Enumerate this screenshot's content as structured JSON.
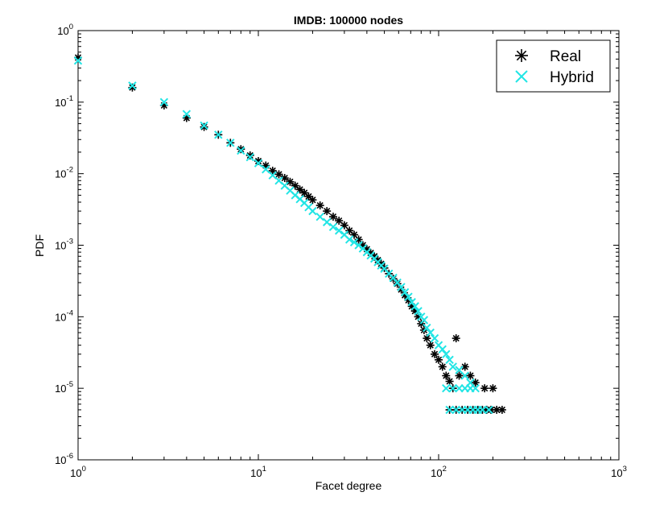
{
  "chart_data": {
    "type": "scatter",
    "title": "IMDB: 100000 nodes",
    "xlabel": "Facet degree",
    "ylabel": "PDF",
    "xscale": "log",
    "yscale": "log",
    "xlim": [
      1,
      1000
    ],
    "ylim": [
      1e-06,
      1
    ],
    "grid": false,
    "legend_position": "top-right",
    "x_ticks": [
      {
        "base": "10",
        "exp": "0",
        "value": 1
      },
      {
        "base": "10",
        "exp": "1",
        "value": 10
      },
      {
        "base": "10",
        "exp": "2",
        "value": 100
      },
      {
        "base": "10",
        "exp": "3",
        "value": 1000
      }
    ],
    "y_ticks": [
      {
        "base": "10",
        "exp": "0",
        "value": 1
      },
      {
        "base": "10",
        "exp": "-1",
        "value": 0.1
      },
      {
        "base": "10",
        "exp": "-2",
        "value": 0.01
      },
      {
        "base": "10",
        "exp": "-3",
        "value": 0.001
      },
      {
        "base": "10",
        "exp": "-4",
        "value": 0.0001
      },
      {
        "base": "10",
        "exp": "-5",
        "value": 1e-05
      },
      {
        "base": "10",
        "exp": "-6",
        "value": 1e-06
      }
    ],
    "series": [
      {
        "name": "Real",
        "marker": "asterisk",
        "color": "#000000",
        "points": [
          [
            1,
            0.42
          ],
          [
            2,
            0.16
          ],
          [
            3,
            0.09
          ],
          [
            4,
            0.06
          ],
          [
            5,
            0.045
          ],
          [
            6,
            0.035
          ],
          [
            7,
            0.027
          ],
          [
            8,
            0.022
          ],
          [
            9,
            0.018
          ],
          [
            10,
            0.015
          ],
          [
            11,
            0.013
          ],
          [
            12,
            0.011
          ],
          [
            13,
            0.0098
          ],
          [
            14,
            0.0087
          ],
          [
            15,
            0.0077
          ],
          [
            16,
            0.0068
          ],
          [
            17,
            0.006
          ],
          [
            18,
            0.0054
          ],
          [
            19,
            0.0048
          ],
          [
            20,
            0.0043
          ],
          [
            22,
            0.0036
          ],
          [
            24,
            0.003
          ],
          [
            26,
            0.0025
          ],
          [
            28,
            0.0022
          ],
          [
            30,
            0.0019
          ],
          [
            32,
            0.0016
          ],
          [
            34,
            0.0014
          ],
          [
            36,
            0.0012
          ],
          [
            38,
            0.001
          ],
          [
            40,
            0.00088
          ],
          [
            42,
            0.00078
          ],
          [
            44,
            0.0007
          ],
          [
            46,
            0.00062
          ],
          [
            48,
            0.00055
          ],
          [
            50,
            0.00048
          ],
          [
            53,
            0.0004
          ],
          [
            56,
            0.00034
          ],
          [
            59,
            0.00029
          ],
          [
            62,
            0.00024
          ],
          [
            65,
            0.0002
          ],
          [
            68,
            0.00017
          ],
          [
            71,
            0.00014
          ],
          [
            74,
            0.00012
          ],
          [
            77,
            0.0001
          ],
          [
            80,
            8e-05
          ],
          [
            83,
            6.5e-05
          ],
          [
            86,
            5e-05
          ],
          [
            90,
            4e-05
          ],
          [
            95,
            3e-05
          ],
          [
            100,
            2.5e-05
          ],
          [
            105,
            2e-05
          ],
          [
            110,
            1.5e-05
          ],
          [
            115,
            1.25e-05
          ],
          [
            120,
            1e-05
          ],
          [
            125,
            5e-05
          ],
          [
            130,
            1.5e-05
          ],
          [
            140,
            2e-05
          ],
          [
            150,
            1.5e-05
          ],
          [
            160,
            1.2e-05
          ],
          [
            180,
            1e-05
          ],
          [
            200,
            1e-05
          ],
          [
            115,
            5e-06
          ],
          [
            125,
            5e-06
          ],
          [
            135,
            5e-06
          ],
          [
            145,
            5e-06
          ],
          [
            155,
            5e-06
          ],
          [
            165,
            5e-06
          ],
          [
            175,
            5e-06
          ],
          [
            185,
            5e-06
          ],
          [
            195,
            5e-06
          ],
          [
            210,
            5e-06
          ],
          [
            225,
            5e-06
          ]
        ]
      },
      {
        "name": "Hybrid",
        "marker": "x",
        "color": "#22e5e5",
        "points": [
          [
            1,
            0.38
          ],
          [
            2,
            0.17
          ],
          [
            3,
            0.1
          ],
          [
            4,
            0.068
          ],
          [
            5,
            0.047
          ],
          [
            6,
            0.035
          ],
          [
            7,
            0.027
          ],
          [
            8,
            0.021
          ],
          [
            9,
            0.017
          ],
          [
            10,
            0.014
          ],
          [
            11,
            0.0115
          ],
          [
            12,
            0.0095
          ],
          [
            13,
            0.008
          ],
          [
            14,
            0.0068
          ],
          [
            15,
            0.0058
          ],
          [
            16,
            0.005
          ],
          [
            17,
            0.0044
          ],
          [
            18,
            0.0039
          ],
          [
            19,
            0.0034
          ],
          [
            20,
            0.003
          ],
          [
            22,
            0.0025
          ],
          [
            24,
            0.0021
          ],
          [
            26,
            0.0018
          ],
          [
            28,
            0.0016
          ],
          [
            30,
            0.0014
          ],
          [
            32,
            0.0012
          ],
          [
            34,
            0.0011
          ],
          [
            36,
            0.001
          ],
          [
            38,
            0.0009
          ],
          [
            40,
            0.0008
          ],
          [
            42,
            0.00072
          ],
          [
            44,
            0.00065
          ],
          [
            46,
            0.00058
          ],
          [
            48,
            0.00052
          ],
          [
            50,
            0.00047
          ],
          [
            53,
            0.0004
          ],
          [
            56,
            0.00035
          ],
          [
            59,
            0.0003
          ],
          [
            62,
            0.00026
          ],
          [
            65,
            0.00022
          ],
          [
            68,
            0.00019
          ],
          [
            71,
            0.00016
          ],
          [
            74,
            0.00014
          ],
          [
            77,
            0.00012
          ],
          [
            80,
            0.0001
          ],
          [
            83,
            9e-05
          ],
          [
            86,
            7e-05
          ],
          [
            90,
            6e-05
          ],
          [
            95,
            5e-05
          ],
          [
            100,
            4e-05
          ],
          [
            105,
            3.5e-05
          ],
          [
            110,
            3e-05
          ],
          [
            115,
            2.5e-05
          ],
          [
            120,
            2e-05
          ],
          [
            130,
            1.8e-05
          ],
          [
            140,
            1.5e-05
          ],
          [
            150,
            1.2e-05
          ],
          [
            160,
            1e-05
          ],
          [
            110,
            1e-05
          ],
          [
            120,
            1e-05
          ],
          [
            130,
            1e-05
          ],
          [
            140,
            1e-05
          ],
          [
            150,
            1e-05
          ],
          [
            115,
            5e-06
          ],
          [
            125,
            5e-06
          ],
          [
            135,
            5e-06
          ],
          [
            145,
            5e-06
          ],
          [
            155,
            5e-06
          ],
          [
            165,
            5e-06
          ],
          [
            175,
            5e-06
          ],
          [
            190,
            5e-06
          ]
        ]
      }
    ]
  }
}
